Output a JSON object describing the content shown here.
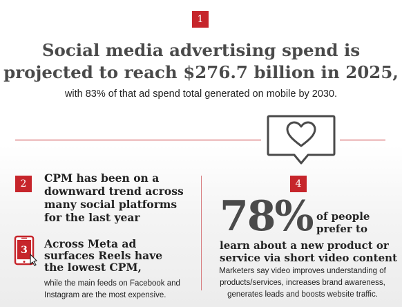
{
  "top": {
    "badge": "1",
    "headline_line1": "Social media advertising spend is",
    "headline_line2": "projected to reach $276.7 billion in 2025,",
    "subhead": "with 83% of that ad spend total generated on mobile by 2030."
  },
  "left": {
    "badge": "2",
    "cpm_lines": [
      "CPM has been on a",
      "downward trend across",
      "many social platforms",
      "for the last year"
    ],
    "badge3": "3",
    "meta_lines": [
      "Across Meta ad",
      "surfaces Reels have",
      "the lowest CPM,"
    ],
    "meta_sub_lines": [
      "while the main feeds on Facebook and",
      "Instagram are the most expensive."
    ]
  },
  "right": {
    "badge": "4",
    "percent": "78%",
    "percent_tail_lines": [
      "of people",
      "prefer to"
    ],
    "learn_lines": [
      "learn about a new product or",
      "service via short video content"
    ],
    "learn_sub_lines": [
      "Marketers say video improves understanding of",
      "products/services, increases brand awareness,",
      "generates leads and boosts website traffic."
    ]
  },
  "icons": {
    "heart": "heart-speech-bubble-icon",
    "phone": "smartphone-click-icon"
  },
  "colors": {
    "accent": "#c6252b",
    "headline": "#4a4a4a",
    "text": "#222222"
  }
}
